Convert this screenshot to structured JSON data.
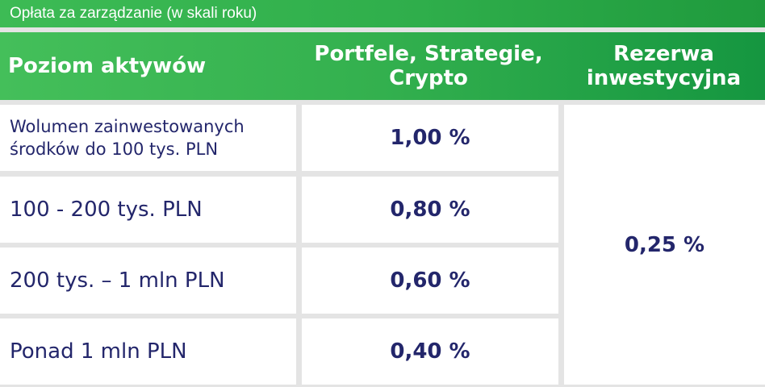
{
  "caption": "Opłata za zarządzanie (w skali roku)",
  "header": {
    "col1": "Poziom aktywów",
    "col2_line1": "Portfele, Strategie,",
    "col2_line2": "Crypto",
    "col3_line1": "Rezerwa",
    "col3_line2": "inwestycyjna"
  },
  "rows": [
    {
      "label_line1": "Wolumen zainwestowanych",
      "label_line2": "środków do 100 tys. PLN",
      "value": "1,00 %"
    },
    {
      "label": "100 - 200 tys. PLN",
      "value": "0,80 %"
    },
    {
      "label": "200 tys. – 1 mln PLN",
      "value": "0,60 %"
    },
    {
      "label": "Ponad 1 mln PLN",
      "value": "0,40 %"
    }
  ],
  "reserve_value": "0,25 %",
  "colors": {
    "header_green": "#33b04e",
    "text_navy": "#23266b",
    "background": "#e4e4e4"
  }
}
